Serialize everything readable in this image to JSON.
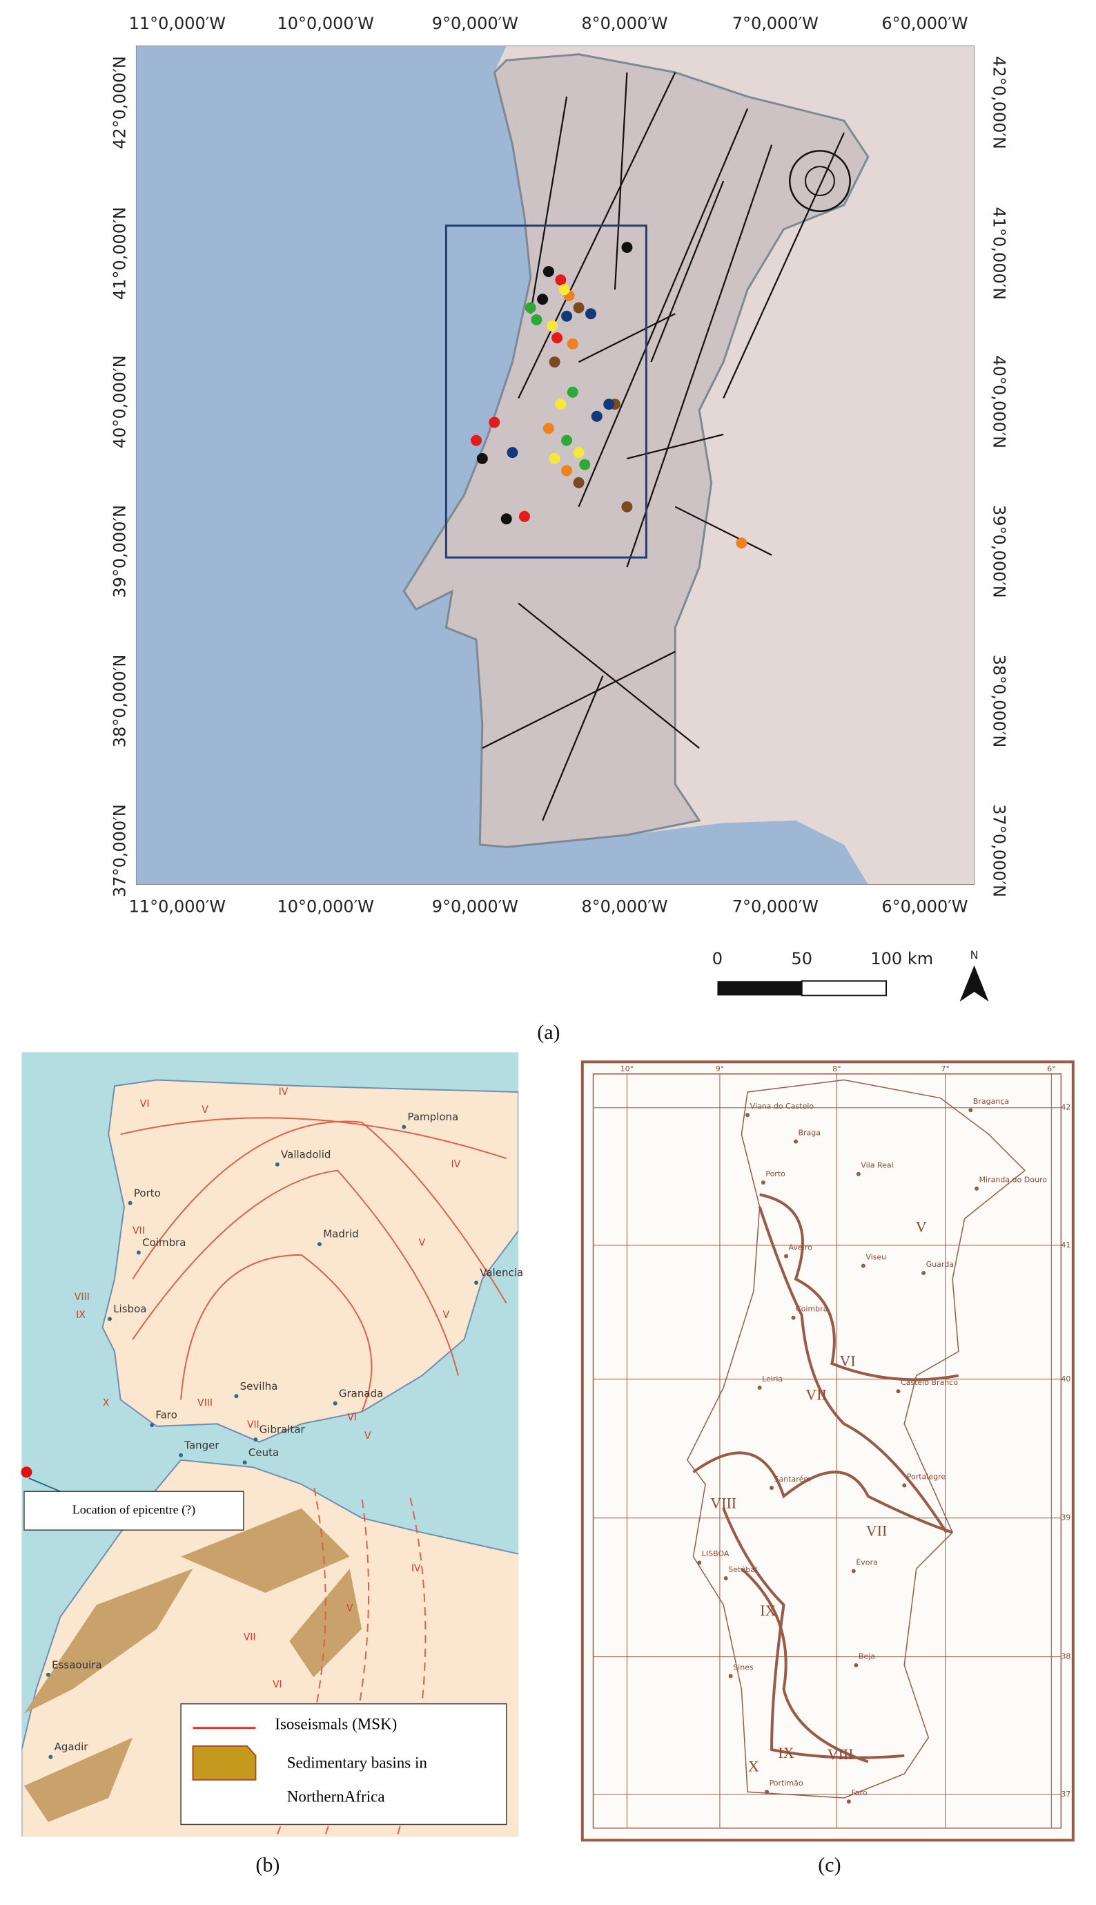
{
  "panel_a": {
    "caption": "(a)",
    "longitude_labels": [
      "11°0,000′W",
      "10°0,000′W",
      "9°0,000′W",
      "8°0,000′W",
      "7°0,000′W",
      "6°0,000′W"
    ],
    "latitude_labels": [
      "42°0,000′N",
      "41°0,000′N",
      "40°0,000′N",
      "39°0,000′N",
      "38°0,000′N",
      "37°0,000′N"
    ],
    "scale_labels": [
      "0",
      "50",
      "100 km"
    ],
    "north": "N"
  },
  "panel_b": {
    "caption": "(b)",
    "cities": [
      "Pamplona",
      "Valladolid",
      "Porto",
      "Madrid",
      "Coimbra",
      "Valencia",
      "Lisboa",
      "Sevilha",
      "Granada",
      "Faro",
      "Gibraltar",
      "Tanger",
      "Ceuta",
      "Essaouira",
      "Agadir"
    ],
    "intensities": [
      "IV",
      "V",
      "VI",
      "IV",
      "VII",
      "VIII",
      "IX",
      "V",
      "V",
      "X",
      "VIII",
      "VII",
      "VI",
      "V",
      "IV",
      "V",
      "VII",
      "VI"
    ],
    "epicentre_label": "Location of epicentre (?)",
    "legend": [
      "Isoseismals (MSK)",
      "Sedimentary basins in",
      "NorthernAfrica"
    ]
  },
  "panel_c": {
    "caption": "(c)",
    "top_labels": [
      "10°",
      "9°",
      "8°",
      "7°",
      "6°"
    ],
    "side_labels": [
      "42",
      "41",
      "40",
      "39",
      "38",
      "37"
    ],
    "cities": [
      "Viana do Castelo",
      "Braga",
      "Bragança",
      "Miranda do Douro",
      "Porto",
      "Vila Real",
      "Aveiro",
      "Viseu",
      "Guarda",
      "Coimbra",
      "Leiria",
      "Castelo Branco",
      "Santarém",
      "Portalegre",
      "LISBOA",
      "Setúbal",
      "Évora",
      "Sines",
      "Beja",
      "Portimão",
      "Faro"
    ],
    "intensities": [
      "V",
      "VI",
      "VII",
      "VII",
      "VIII",
      "IX",
      "X",
      "IX",
      "VIII"
    ]
  }
}
